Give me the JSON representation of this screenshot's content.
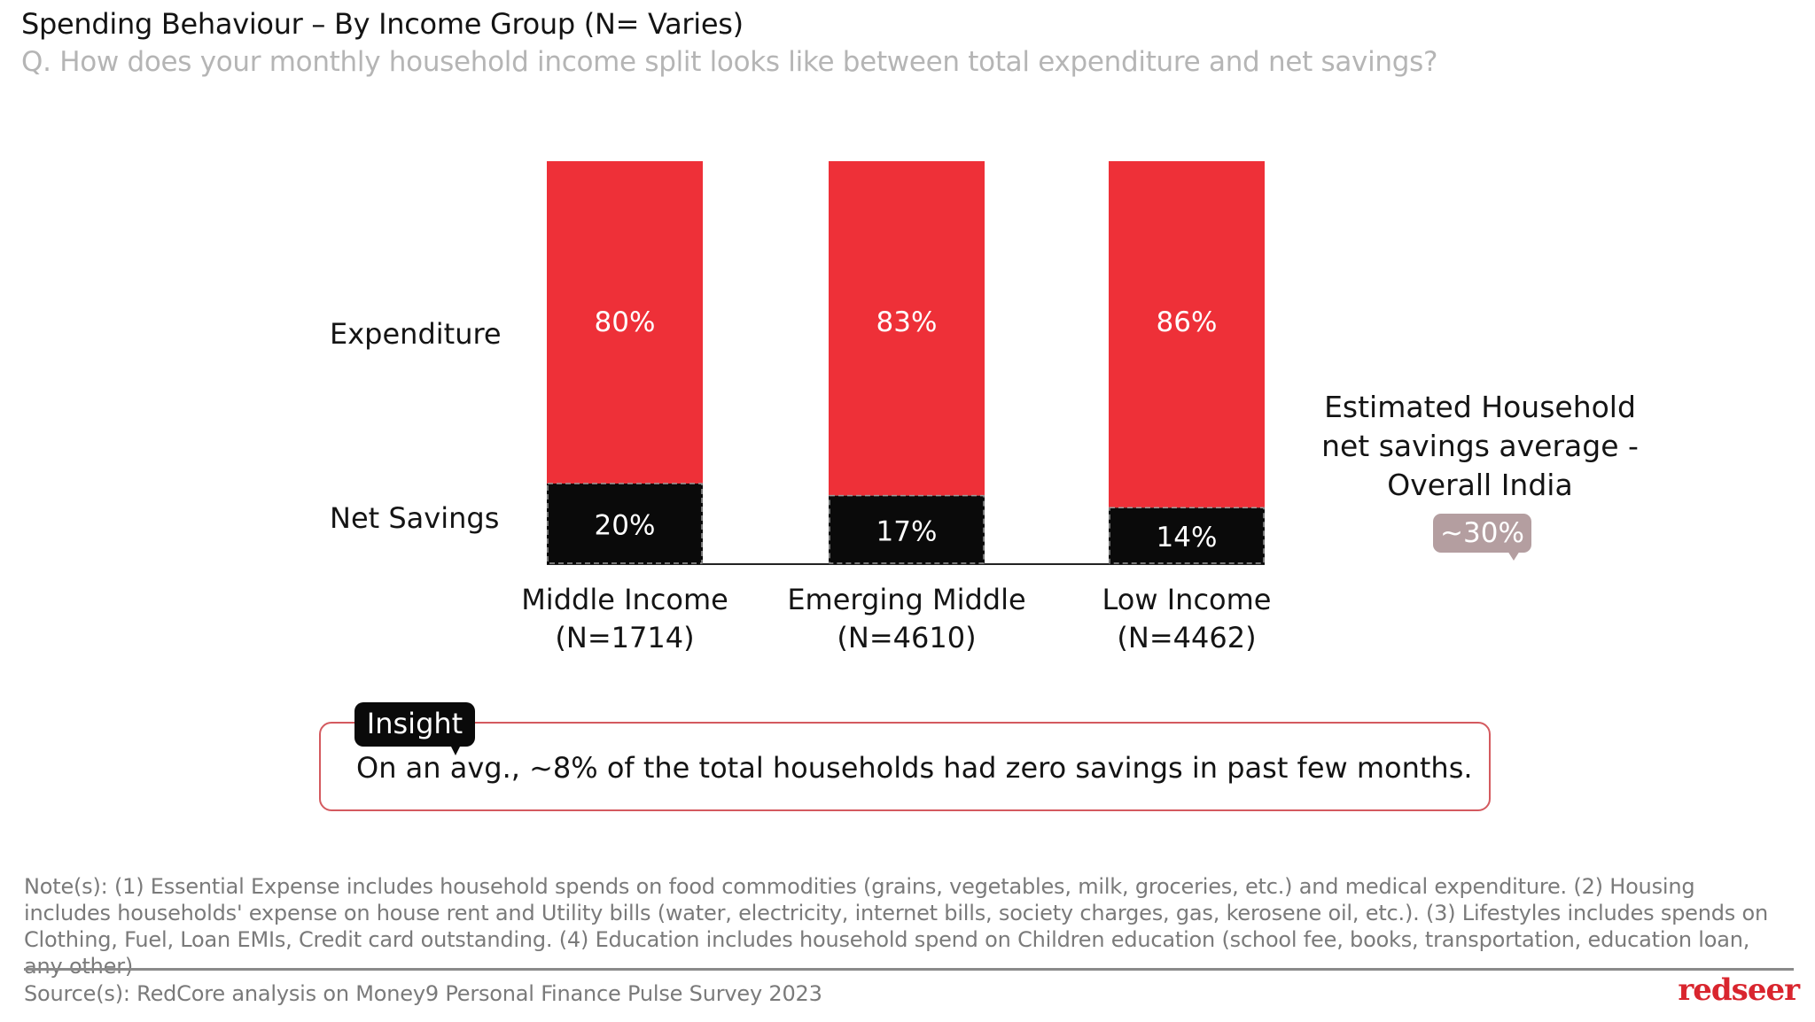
{
  "header": {
    "title": "Spending Behaviour – By Income Group (N= Varies)",
    "subtitle": "Q. How does your monthly household income split looks like between total expenditure and net savings?"
  },
  "chart_data": {
    "type": "bar",
    "stacked": true,
    "orientation": "vertical",
    "title": "Spending Behaviour – By Income Group (N= Varies)",
    "xlabel": "",
    "ylabel": "",
    "ylim": [
      0,
      100
    ],
    "grid": false,
    "categories": [
      "Middle Income",
      "Emerging Middle",
      "Low Income"
    ],
    "category_sublabels": [
      "(N=1714)",
      "(N=4610)",
      "(N=4462)"
    ],
    "series": [
      {
        "name": "Net Savings",
        "values": [
          20,
          17,
          14
        ],
        "labels": [
          "20%",
          "17%",
          "14%"
        ],
        "color": "#0a0a0a"
      },
      {
        "name": "Expenditure",
        "values": [
          80,
          83,
          86
        ],
        "labels": [
          "80%",
          "83%",
          "86%"
        ],
        "color": "#ee3038"
      }
    ],
    "row_labels": [
      "Expenditure",
      "Net Savings"
    ],
    "annotation": {
      "text": "Estimated Household net  savings average - Overall India",
      "value": "~30%"
    }
  },
  "side_note": {
    "line1": "Estimated Household",
    "line2": "net  savings average -",
    "line3": "Overall India",
    "value": "~30%"
  },
  "insight": {
    "tag": "Insight",
    "text": "On an avg., ~8% of the total households had zero savings in past few months."
  },
  "footer": {
    "notes": "Note(s): (1) Essential Expense includes household spends on food commodities (grains, vegetables, milk, groceries, etc.) and medical expenditure. (2) Housing includes households' expense on house rent and Utility bills (water, electricity, internet bills, society charges, gas, kerosene oil, etc.). (3) Lifestyles includes spends on Clothing, Fuel, Loan EMIs, Credit card outstanding. (4) Education includes household spend on Children education (school fee, books, transportation, education loan, any other)",
    "source": "Source(s): RedCore analysis on Money9 Personal Finance Pulse Survey 2023",
    "logo": "redseer"
  }
}
